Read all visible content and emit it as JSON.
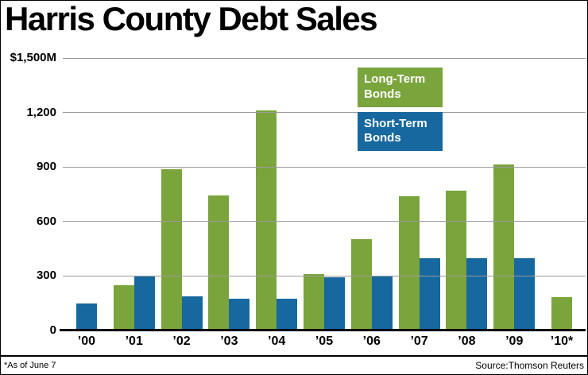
{
  "title": "Harris County Debt Sales",
  "legend": [
    {
      "label": "Long-Term Bonds",
      "color": "#7aa43c"
    },
    {
      "label": "Short-Term Bonds",
      "color": "#17689e"
    }
  ],
  "footer": {
    "footnote": "*As of June 7",
    "source": "Source:Thomson Reuters"
  },
  "chart_data": {
    "type": "bar",
    "title": "Harris County Debt Sales",
    "categories": [
      "’00",
      "’01",
      "’02",
      "’03",
      "’04",
      "’05",
      "’06",
      "’07",
      "’08",
      "’09",
      "’10*"
    ],
    "series": [
      {
        "name": "Long-Term Bonds",
        "color": "#7aa43c",
        "values": [
          null,
          250,
          890,
          745,
          1210,
          310,
          505,
          740,
          770,
          915,
          185
        ]
      },
      {
        "name": "Short-Term Bonds",
        "color": "#17689e",
        "values": [
          150,
          300,
          190,
          175,
          175,
          295,
          300,
          400,
          400,
          400,
          null
        ]
      }
    ],
    "ylim": [
      0,
      1500
    ],
    "yticks": [
      {
        "value": 0,
        "label": "0"
      },
      {
        "value": 300,
        "label": "300"
      },
      {
        "value": 600,
        "label": "600"
      },
      {
        "value": 900,
        "label": "900"
      },
      {
        "value": 1200,
        "label": "1,200"
      },
      {
        "value": 1500,
        "label": "$1,500M"
      }
    ],
    "grid": true,
    "legend_position": "top-right-inside"
  }
}
